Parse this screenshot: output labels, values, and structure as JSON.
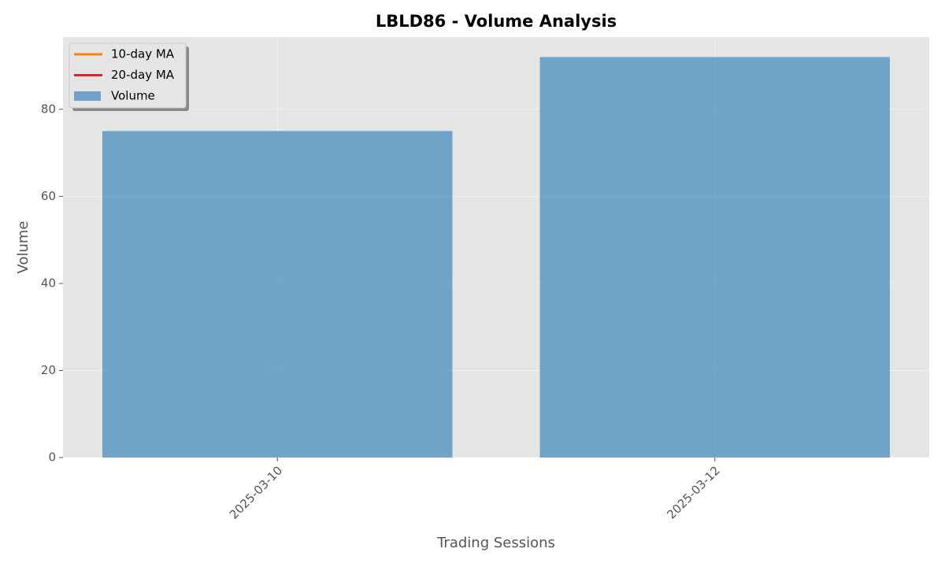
{
  "chart_data": {
    "type": "bar",
    "title": "LBLD86 - Volume Analysis",
    "x_label": "Trading Sessions",
    "y_label": "Volume",
    "categories": [
      "2025-03-10",
      "2025-03-12"
    ],
    "series": [
      {
        "name": "10-day MA",
        "color": "#ff7f0e",
        "kind": "line",
        "values": [
          null,
          null
        ]
      },
      {
        "name": "20-day MA",
        "color": "#d62728",
        "kind": "line",
        "values": [
          null,
          null
        ]
      },
      {
        "name": "Volume",
        "color": "#1f77b4",
        "kind": "bar",
        "values": [
          75,
          92
        ]
      }
    ],
    "ylim": [
      0,
      96.6
    ],
    "yticks": [
      0,
      20,
      40,
      60,
      80
    ],
    "grid": true,
    "legend": "upper left"
  }
}
